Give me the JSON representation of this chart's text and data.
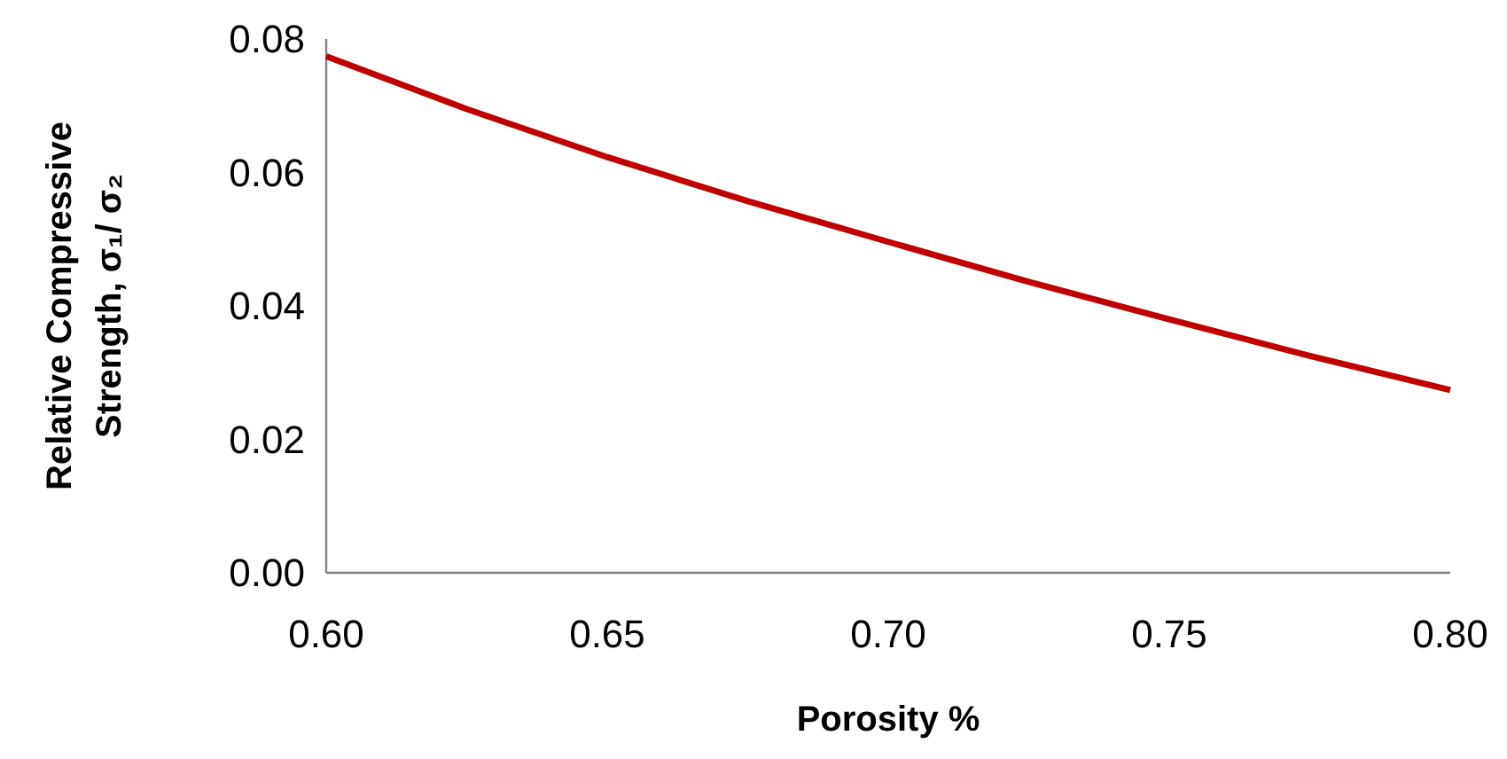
{
  "chart_data": {
    "type": "line",
    "xlabel": "Porosity %",
    "ylabel": "Relative Compressive\nStrength, σ₁/ σ₂",
    "x": [
      0.6,
      0.625,
      0.65,
      0.675,
      0.7,
      0.725,
      0.75,
      0.775,
      0.8
    ],
    "series": [
      {
        "color": "#c00000",
        "values": [
          0.0774,
          0.0695,
          0.0623,
          0.0557,
          0.0496,
          0.0436,
          0.038,
          0.0325,
          0.0274
        ]
      }
    ],
    "xlim": [
      0.6,
      0.8
    ],
    "ylim": [
      0,
      0.08
    ],
    "xticks": [
      {
        "value": 0.6,
        "label": "0.60"
      },
      {
        "value": 0.65,
        "label": "0.65"
      },
      {
        "value": 0.7,
        "label": "0.70"
      },
      {
        "value": 0.75,
        "label": "0.75"
      },
      {
        "value": 0.8,
        "label": "0.80"
      }
    ],
    "yticks": [
      {
        "value": 0,
        "label": "0.00"
      },
      {
        "value": 0.02,
        "label": "0.02"
      },
      {
        "value": 0.04,
        "label": "0.04"
      },
      {
        "value": 0.06,
        "label": "0.06"
      },
      {
        "value": 0.08,
        "label": "0.08"
      }
    ],
    "grid": false,
    "marker": "none",
    "line_style": "solid"
  }
}
